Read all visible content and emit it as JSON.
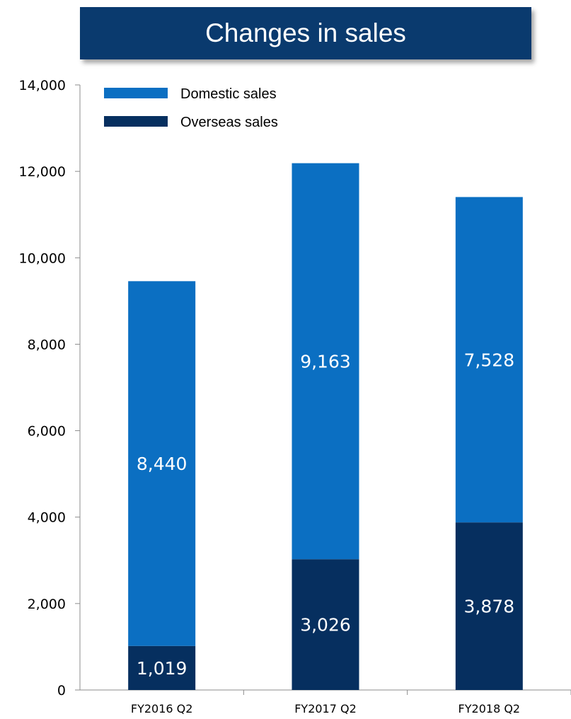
{
  "chart_data": {
    "type": "bar",
    "stacked": true,
    "title": "Changes in sales",
    "categories": [
      "FY2016 Q2",
      "FY2017 Q2",
      "FY2018 Q2"
    ],
    "series": [
      {
        "name": "Overseas sales",
        "values": [
          1019,
          3026,
          3878
        ],
        "color": "#062f5f"
      },
      {
        "name": "Domestic sales",
        "values": [
          8440,
          9163,
          7528
        ],
        "color": "#0b6fc2"
      }
    ],
    "data_labels": {
      "Overseas sales": [
        "1,019",
        "3,026",
        "3,878"
      ],
      "Domestic sales": [
        "8,440",
        "9,163",
        "7,528"
      ]
    },
    "ylim": [
      0,
      14000
    ],
    "yticks": [
      0,
      2000,
      4000,
      6000,
      8000,
      10000,
      12000,
      14000
    ],
    "ytick_labels": [
      "0",
      "2,000",
      "4,000",
      "6,000",
      "8,000",
      "10,000",
      "12,000",
      "14,000"
    ],
    "xlabel": "",
    "ylabel": "",
    "grid": false,
    "legend_position": "top-left",
    "legend": [
      {
        "name": "Domestic sales",
        "color": "#0b6fc2"
      },
      {
        "name": "Overseas sales",
        "color": "#062f5f"
      }
    ]
  }
}
